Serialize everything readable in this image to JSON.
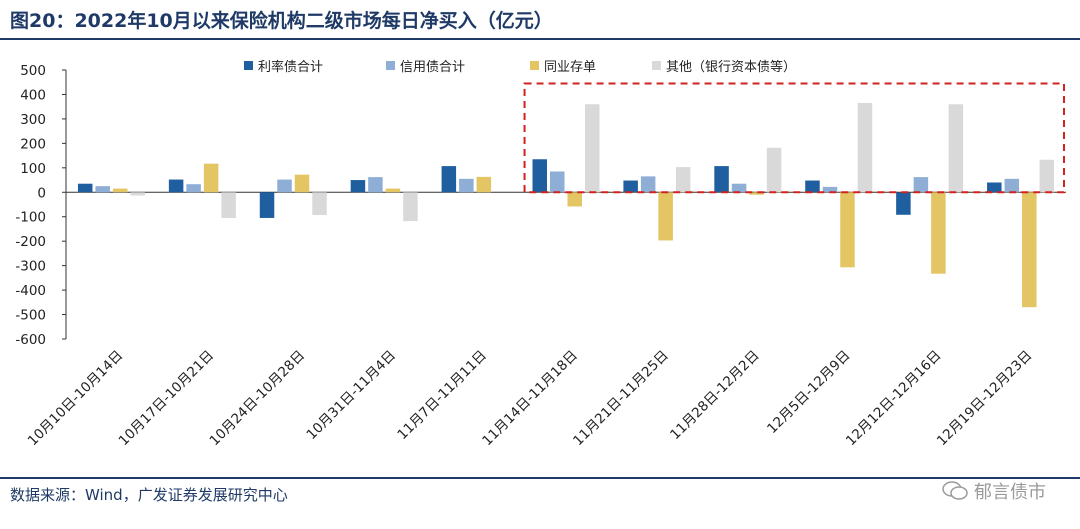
{
  "title": "图20：2022年10月以来保险机构二级市场每日净买入（亿元）",
  "source": "数据来源：Wind，广发证券发展研究中心",
  "watermark": "郁言债市",
  "chart_data": {
    "type": "bar",
    "categories": [
      "10月10日-10月14日",
      "10月17日-10月21日",
      "10月24日-10月28日",
      "10月31日-11月4日",
      "11月7日-11月11日",
      "11月14日-11月18日",
      "11月21日-11月25日",
      "11月28日-12月2日",
      "12月5日-12月9日",
      "12月12日-12月16日",
      "12月19日-12月23日"
    ],
    "series": [
      {
        "name": "利率债合计",
        "color": "#1f5fa0",
        "values": [
          35,
          52,
          -105,
          50,
          107,
          135,
          48,
          107,
          48,
          -92,
          40
        ]
      },
      {
        "name": "信用债合计",
        "color": "#8eaed6",
        "values": [
          25,
          33,
          52,
          62,
          55,
          85,
          65,
          35,
          22,
          62,
          55
        ]
      },
      {
        "name": "同业存单",
        "color": "#e4c563",
        "values": [
          15,
          117,
          72,
          15,
          63,
          -58,
          -197,
          -10,
          -307,
          -333,
          -470
        ]
      },
      {
        "name": "其他（银行资本债等）",
        "color": "#d9d9d9",
        "values": [
          -13,
          -105,
          -93,
          -118,
          0,
          360,
          103,
          182,
          365,
          360,
          133
        ]
      }
    ],
    "yticks": [
      500,
      400,
      300,
      200,
      100,
      0,
      -100,
      -200,
      -300,
      -400,
      -500,
      -600
    ],
    "ylim": [
      -600,
      500
    ],
    "legend_position": "top",
    "annotation": "red dashed box highlighting 11月14日 to 12月23日 positive values"
  }
}
